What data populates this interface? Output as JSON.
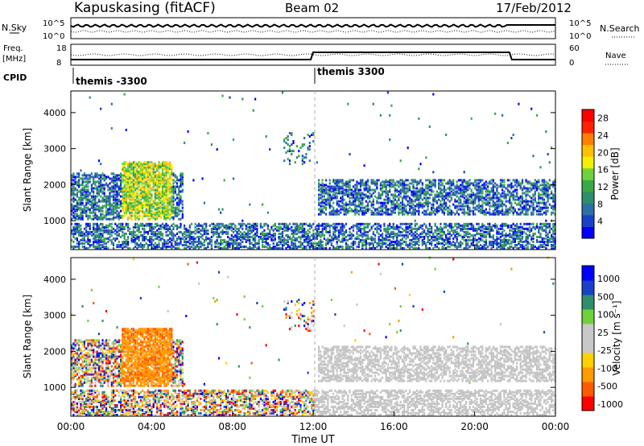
{
  "header": {
    "station": "Kapuskasing (fitACF)",
    "beam": "Beam 02",
    "date": "17/Feb/2012"
  },
  "top_panels": {
    "nsky_label": "N.Sky",
    "nsky_ticks": [
      "10^5",
      "10^0"
    ],
    "nsearch_label": "N.Search",
    "nsearch_ticks": [
      "10^5",
      "10^0"
    ],
    "freq_label": "Freq.",
    "freq_unit": "[MHz]",
    "freq_ticks": [
      "18",
      "8"
    ],
    "nave_label": "Nave",
    "nave_ticks": [
      "60",
      "0"
    ],
    "cpid_label": "CPID",
    "cpid_segments": [
      "themis -3300",
      "themis 3300"
    ]
  },
  "colors": {
    "power_scale": [
      "#0000ff",
      "#1a40c8",
      "#2e6fa8",
      "#2f8f6a",
      "#39a846",
      "#6fd23a",
      "#f0f000",
      "#ffc000",
      "#ff7f00",
      "#ff2200",
      "#ff0000"
    ],
    "velocity_scale": [
      "#ff0000",
      "#ff5a00",
      "#ff9a00",
      "#ffd000",
      "#c8c8c8",
      "#c8c8c8",
      "#6fd23a",
      "#2f8f6a",
      "#1a40c8",
      "#0000ff"
    ],
    "ground_scatter": "#c4c4c4"
  },
  "chart_data": [
    {
      "type": "heatmap",
      "title": "Power",
      "xlabel": "",
      "ylabel": "Slant Range [km]",
      "x_ticks": [
        "00:00",
        "04:00",
        "08:00",
        "12:00",
        "16:00",
        "20:00",
        "00:00"
      ],
      "y_ticks": [
        "1000",
        "2000",
        "3000",
        "4000"
      ],
      "xlim": [
        0,
        24
      ],
      "ylim": [
        200,
        4600
      ],
      "colorbar_label": "Power [dB]",
      "colorbar_ticks": [
        "4",
        "8",
        "12",
        "16",
        "20",
        "24",
        "28"
      ],
      "colorbar_range": [
        0,
        30
      ]
    },
    {
      "type": "heatmap",
      "title": "Velocity",
      "xlabel": "Time UT",
      "ylabel": "Slant Range [km]",
      "x_ticks": [
        "00:00",
        "04:00",
        "08:00",
        "12:00",
        "16:00",
        "20:00",
        "00:00"
      ],
      "y_ticks": [
        "1000",
        "2000",
        "3000",
        "4000"
      ],
      "xlim": [
        0,
        24
      ],
      "ylim": [
        200,
        4600
      ],
      "colorbar_label": "Velocity [m s⁻¹]",
      "colorbar_ticks": [
        "1000",
        "500",
        "100",
        "25",
        "-25",
        "-100",
        "-500",
        "-1000"
      ]
    }
  ]
}
